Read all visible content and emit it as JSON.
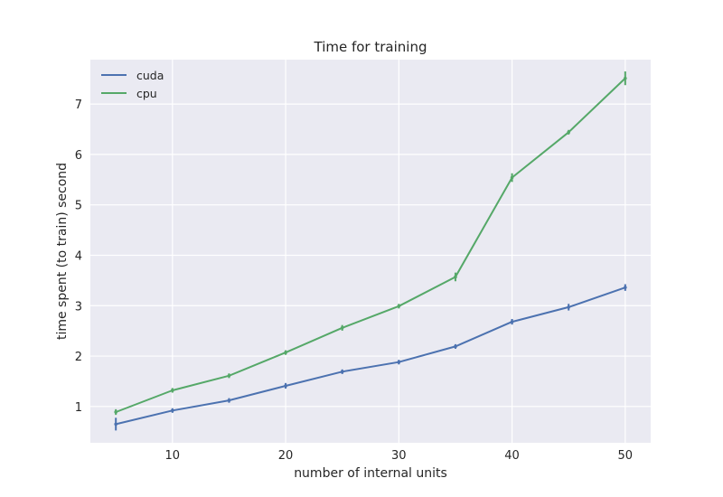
{
  "chart_data": {
    "type": "line",
    "title": "Time for training",
    "xlabel": "number of internal units",
    "ylabel": "time spent (to train) second",
    "x": [
      5,
      10,
      15,
      20,
      25,
      30,
      35,
      40,
      45,
      50
    ],
    "xlim": [
      2.75,
      52.25
    ],
    "ylim": [
      0.28,
      7.88
    ],
    "xticks": [
      10,
      20,
      30,
      40,
      50
    ],
    "yticks": [
      1,
      2,
      3,
      4,
      5,
      6,
      7
    ],
    "grid": true,
    "legend_position": "top-left",
    "background_color": "#eaeaf2",
    "series": [
      {
        "name": "cuda",
        "color": "#4c72b0",
        "values": [
          0.65,
          0.92,
          1.12,
          1.41,
          1.69,
          1.88,
          2.19,
          2.68,
          2.97,
          3.36
        ],
        "error": [
          0.09,
          0.01,
          0.01,
          0.02,
          0.01,
          0.01,
          0.01,
          0.02,
          0.03,
          0.03
        ]
      },
      {
        "name": "cpu",
        "color": "#55a868",
        "values": [
          0.89,
          1.32,
          1.61,
          2.07,
          2.56,
          2.99,
          3.57,
          5.54,
          6.44,
          7.51
        ],
        "error": [
          0.02,
          0.01,
          0.01,
          0.01,
          0.02,
          0.01,
          0.05,
          0.05,
          0.01,
          0.1
        ]
      }
    ]
  }
}
